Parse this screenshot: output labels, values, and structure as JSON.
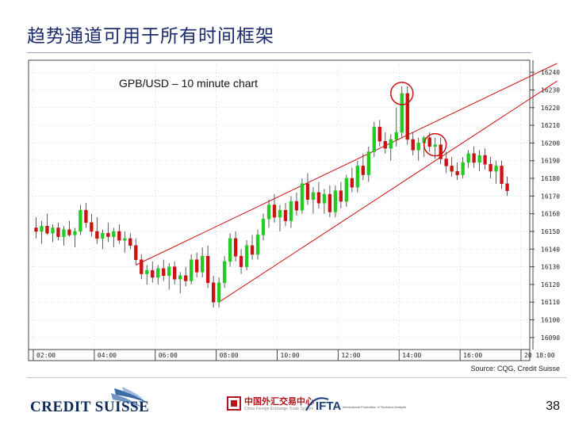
{
  "slide": {
    "title": "趋势通道可用于所有时间框架",
    "source": "Source: CQG, Credit Suisse",
    "page_number": "38"
  },
  "logos": {
    "credit_suisse": "CREDIT SUISSE",
    "cfx_chinese": "中国外汇交易中心",
    "cfx_english": "China Foreign Exchange Trade System",
    "ifta": "IFTA",
    "ifta_sub": "International Federation of Technical Analysts"
  },
  "colors": {
    "bull": "#22cc22",
    "bear": "#cc1111",
    "channel": "#cc1111",
    "circle": "#cc1111",
    "title": "#1a2a6c",
    "grid": "#bbbbbb"
  },
  "chart_data": {
    "type": "candlestick",
    "title": "GPB/USD – 10 minute chart",
    "ylim": [
      1.6085,
      1.6245
    ],
    "y_ticks": [
      "16240",
      "16230",
      "16220",
      "16210",
      "16200",
      "16190",
      "16180",
      "16170",
      "16160",
      "16150",
      "16140",
      "16130",
      "16120",
      "16110",
      "16100",
      "16090"
    ],
    "y_tick_values": [
      1.624,
      1.623,
      1.622,
      1.621,
      1.62,
      1.619,
      1.618,
      1.617,
      1.616,
      1.615,
      1.614,
      1.613,
      1.612,
      1.611,
      1.61,
      1.609
    ],
    "x_ticks": [
      "02:00",
      "04:00",
      "06:00",
      "08:00",
      "10:00",
      "12:00",
      "14:00",
      "16:00",
      "20 18:00"
    ],
    "x_tick_index": [
      0,
      11,
      22,
      33,
      44,
      55,
      66,
      77,
      88
    ],
    "grid": true,
    "candles": [
      [
        1.6152,
        1.6158,
        1.6146,
        1.615
      ],
      [
        1.615,
        1.6156,
        1.6143,
        1.6153
      ],
      [
        1.6153,
        1.616,
        1.6148,
        1.6149
      ],
      [
        1.6149,
        1.6154,
        1.6144,
        1.6152
      ],
      [
        1.6152,
        1.6155,
        1.6145,
        1.6147
      ],
      [
        1.6147,
        1.6153,
        1.6142,
        1.6151
      ],
      [
        1.6151,
        1.6156,
        1.6147,
        1.6148
      ],
      [
        1.6148,
        1.6152,
        1.6141,
        1.615
      ],
      [
        1.615,
        1.6165,
        1.6148,
        1.6162
      ],
      [
        1.6162,
        1.6166,
        1.6152,
        1.6155
      ],
      [
        1.6155,
        1.616,
        1.6147,
        1.615
      ],
      [
        1.615,
        1.6158,
        1.6143,
        1.6146
      ],
      [
        1.6146,
        1.6151,
        1.614,
        1.6149
      ],
      [
        1.6149,
        1.6155,
        1.6144,
        1.6147
      ],
      [
        1.6147,
        1.6152,
        1.6141,
        1.615
      ],
      [
        1.615,
        1.6154,
        1.6143,
        1.6145
      ],
      [
        1.6145,
        1.615,
        1.6138,
        1.6146
      ],
      [
        1.6146,
        1.6149,
        1.614,
        1.6142
      ],
      [
        1.6142,
        1.6146,
        1.6131,
        1.6134
      ],
      [
        1.6134,
        1.6137,
        1.6123,
        1.6126
      ],
      [
        1.6126,
        1.6131,
        1.612,
        1.6128
      ],
      [
        1.6128,
        1.6133,
        1.6121,
        1.6124
      ],
      [
        1.6124,
        1.6131,
        1.612,
        1.6129
      ],
      [
        1.6129,
        1.6134,
        1.6122,
        1.6125
      ],
      [
        1.6125,
        1.6132,
        1.6117,
        1.613
      ],
      [
        1.613,
        1.6133,
        1.612,
        1.6123
      ],
      [
        1.6123,
        1.6127,
        1.6115,
        1.6125
      ],
      [
        1.6125,
        1.613,
        1.6119,
        1.6122
      ],
      [
        1.6122,
        1.6137,
        1.612,
        1.6134
      ],
      [
        1.6134,
        1.6138,
        1.6124,
        1.6127
      ],
      [
        1.6127,
        1.6141,
        1.6124,
        1.6136
      ],
      [
        1.6136,
        1.6142,
        1.6118,
        1.6121
      ],
      [
        1.6121,
        1.6125,
        1.6107,
        1.611
      ],
      [
        1.611,
        1.6124,
        1.6107,
        1.6121
      ],
      [
        1.6121,
        1.6136,
        1.6118,
        1.6133
      ],
      [
        1.6133,
        1.6149,
        1.613,
        1.6146
      ],
      [
        1.6146,
        1.615,
        1.6133,
        1.6136
      ],
      [
        1.6136,
        1.614,
        1.6126,
        1.613
      ],
      [
        1.613,
        1.6145,
        1.6128,
        1.6142
      ],
      [
        1.6142,
        1.6148,
        1.6134,
        1.6137
      ],
      [
        1.6137,
        1.6151,
        1.6134,
        1.6148
      ],
      [
        1.6148,
        1.616,
        1.6145,
        1.6157
      ],
      [
        1.6157,
        1.6168,
        1.6152,
        1.6165
      ],
      [
        1.6165,
        1.6171,
        1.6155,
        1.6158
      ],
      [
        1.6158,
        1.6165,
        1.615,
        1.6162
      ],
      [
        1.6162,
        1.6166,
        1.6153,
        1.6156
      ],
      [
        1.6156,
        1.617,
        1.6152,
        1.6167
      ],
      [
        1.6167,
        1.6172,
        1.6159,
        1.6162
      ],
      [
        1.6162,
        1.618,
        1.616,
        1.6177
      ],
      [
        1.6177,
        1.6183,
        1.6165,
        1.6168
      ],
      [
        1.6168,
        1.6175,
        1.616,
        1.6172
      ],
      [
        1.6172,
        1.6178,
        1.6163,
        1.6166
      ],
      [
        1.6166,
        1.6174,
        1.616,
        1.6171
      ],
      [
        1.6171,
        1.6176,
        1.6158,
        1.6161
      ],
      [
        1.6161,
        1.6176,
        1.6158,
        1.6173
      ],
      [
        1.6173,
        1.6178,
        1.6163,
        1.6167
      ],
      [
        1.6167,
        1.6182,
        1.6164,
        1.618
      ],
      [
        1.618,
        1.6186,
        1.6172,
        1.6175
      ],
      [
        1.6175,
        1.619,
        1.6172,
        1.6187
      ],
      [
        1.6187,
        1.6194,
        1.6179,
        1.6182
      ],
      [
        1.6182,
        1.6198,
        1.6178,
        1.6195
      ],
      [
        1.6195,
        1.6212,
        1.6192,
        1.6209
      ],
      [
        1.6209,
        1.6213,
        1.6198,
        1.6201
      ],
      [
        1.6201,
        1.6206,
        1.6194,
        1.6197
      ],
      [
        1.6197,
        1.6205,
        1.619,
        1.6202
      ],
      [
        1.6202,
        1.622,
        1.6198,
        1.6206
      ],
      [
        1.6206,
        1.6232,
        1.6203,
        1.6228
      ],
      [
        1.6228,
        1.6232,
        1.6199,
        1.6202
      ],
      [
        1.6202,
        1.6206,
        1.6193,
        1.6196
      ],
      [
        1.6196,
        1.6203,
        1.619,
        1.62
      ],
      [
        1.62,
        1.6204,
        1.6192,
        1.6203
      ],
      [
        1.6203,
        1.6206,
        1.6195,
        1.6198
      ],
      [
        1.6198,
        1.6203,
        1.6191,
        1.6199
      ],
      [
        1.6199,
        1.6203,
        1.6188,
        1.6191
      ],
      [
        1.6191,
        1.6195,
        1.6183,
        1.6187
      ],
      [
        1.6187,
        1.6192,
        1.6181,
        1.6184
      ],
      [
        1.6184,
        1.6189,
        1.6179,
        1.6182
      ],
      [
        1.6182,
        1.6192,
        1.618,
        1.6189
      ],
      [
        1.6189,
        1.6196,
        1.6186,
        1.6194
      ],
      [
        1.6194,
        1.6198,
        1.6186,
        1.6189
      ],
      [
        1.6189,
        1.6196,
        1.6184,
        1.6193
      ],
      [
        1.6193,
        1.6197,
        1.6185,
        1.6188
      ],
      [
        1.6188,
        1.6192,
        1.618,
        1.6184
      ],
      [
        1.6184,
        1.619,
        1.6177,
        1.6187
      ],
      [
        1.6187,
        1.619,
        1.6174,
        1.6177
      ],
      [
        1.6177,
        1.6181,
        1.617,
        1.6173
      ]
    ],
    "channel_lines": [
      {
        "from": [
          18,
          1.6131
        ],
        "to": [
          94,
          1.6245
        ]
      },
      {
        "from": [
          33,
          1.611
        ],
        "to": [
          94,
          1.6235
        ]
      }
    ],
    "highlights": [
      {
        "index": 66,
        "price": 1.6228
      },
      {
        "index": 72,
        "price": 1.6199
      }
    ],
    "footer_text": "Source: CQG, Credit Suisse"
  }
}
